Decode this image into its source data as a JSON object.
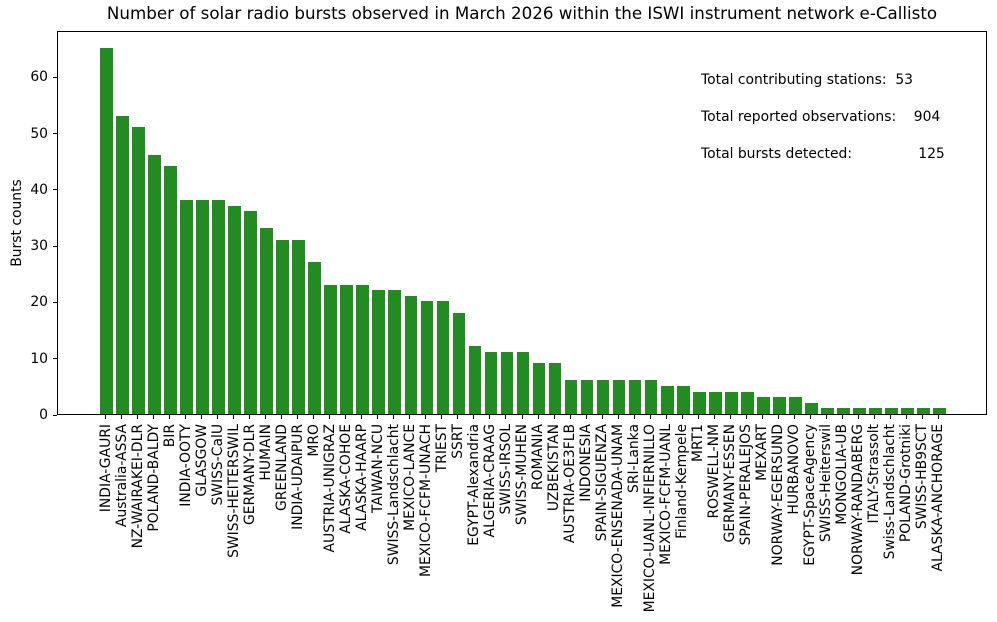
{
  "title": "Number of solar radio bursts observed in March 2026 within the ISWI instrument network e-Callisto",
  "annotations": {
    "stations_line": "Total contributing stations:  53",
    "observations_line": "Total reported observations:    904",
    "bursts_line": "Total bursts detected:               125",
    "stations_label": "Total contributing stations:",
    "stations_value": 53,
    "observations_label": "Total reported observations:",
    "observations_value": 904,
    "bursts_label": "Total bursts detected:",
    "bursts_value": 125
  },
  "chart_data": {
    "type": "bar",
    "title": "Number of solar radio bursts observed in March 2026 within the ISWI instrument network e-Callisto",
    "xlabel": "",
    "ylabel": "Burst counts",
    "ylim": [
      0,
      68.25
    ],
    "yticks": [
      0,
      10,
      20,
      30,
      40,
      50,
      60
    ],
    "bar_color": "#228B22",
    "grid": false,
    "legend": null,
    "categories": [
      "INDIA-GAURI",
      "Australia-ASSA",
      "NZ-WAIRAKEI-DLR",
      "POLAND-BALDY",
      "BIR",
      "INDIA-OOTY",
      "GLASGOW",
      "SWISS-CalU",
      "SWISS-HEITERSWIL",
      "GERMANY-DLR",
      "HUMAIN",
      "GREENLAND",
      "INDIA-UDAIPUR",
      "MRO",
      "AUSTRIA-UNIGRAZ",
      "ALASKA-COHOE",
      "ALASKA-HAARP",
      "TAIWAN-NCU",
      "SWISS-Landschlacht",
      "MEXICO-LANCE",
      "MEXICO-FCFM-UNACH",
      "TRIEST",
      "SSRT",
      "EGYPT-Alexandria",
      "ALGERIA-CRAAG",
      "SWISS-IRSOL",
      "SWISS-MUHEN",
      "ROMANIA",
      "UZBEKISTAN",
      "AUSTRIA-OE3FLB",
      "INDONESIA",
      "SPAIN-SIGUENZA",
      "MEXICO-ENSENADA-UNAM",
      "SRI-Lanka",
      "MEXICO-UANL-INFIERNILLO",
      "MEXICO-FCFM-UANL",
      "Finland-Kempele",
      "MRT1",
      "ROSWELL-NM",
      "GERMANY-ESSEN",
      "SPAIN-PERALEJOS",
      "MEXART",
      "NORWAY-EGERSUND",
      "HURBANOVO",
      "EGYPT-SpaceAgency",
      "SWISS-Heiterswil",
      "MONGOLIA-UB",
      "NORWAY-RANDABERG",
      "ITALY-Strassolt",
      "Swiss-Landschlacht",
      "POLAND-Grotniki",
      "SWISS-HB9SCT",
      "ALASKA-ANCHORAGE"
    ],
    "values": [
      65,
      53,
      51,
      46,
      44,
      38,
      38,
      38,
      37,
      36,
      33,
      31,
      31,
      27,
      23,
      23,
      23,
      22,
      22,
      21,
      20,
      20,
      18,
      12,
      11,
      11,
      11,
      9,
      9,
      6,
      6,
      6,
      6,
      6,
      6,
      5,
      5,
      4,
      4,
      4,
      4,
      3,
      3,
      3,
      2,
      1,
      1,
      1,
      1,
      1,
      1,
      1,
      1
    ]
  }
}
